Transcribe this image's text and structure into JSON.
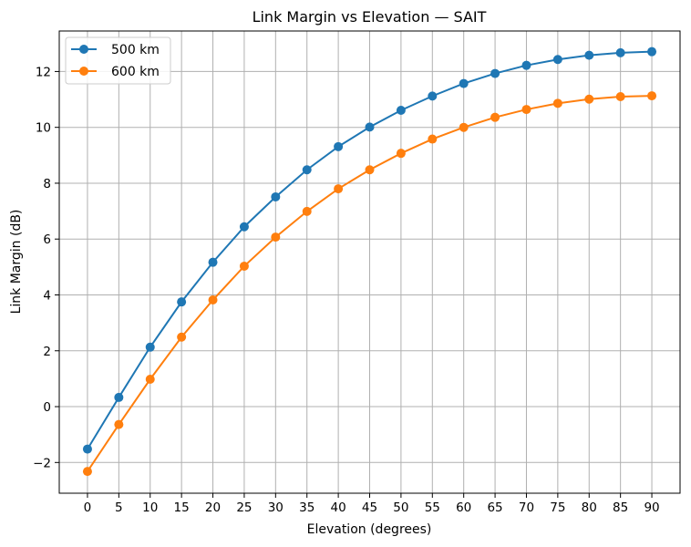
{
  "chart_data": {
    "type": "line",
    "title": "Link Margin vs Elevation — SAIT",
    "xlabel": "Elevation (degrees)",
    "ylabel": "Link Margin (dB)",
    "x": [
      0,
      5,
      10,
      15,
      20,
      25,
      30,
      35,
      40,
      45,
      50,
      55,
      60,
      65,
      70,
      75,
      80,
      85,
      90
    ],
    "xlim": [
      -4.5,
      94.5
    ],
    "ylim": [
      -3.1,
      13.45
    ],
    "xticks": [
      0,
      5,
      10,
      15,
      20,
      25,
      30,
      35,
      40,
      45,
      50,
      55,
      60,
      65,
      70,
      75,
      80,
      85,
      90
    ],
    "yticks": [
      -2,
      0,
      2,
      4,
      6,
      8,
      10,
      12
    ],
    "ytick_labels": [
      "−2",
      "0",
      "2",
      "4",
      "6",
      "8",
      "10",
      "12"
    ],
    "grid": true,
    "legend_position": "top-left",
    "series": [
      {
        "name": "500 km",
        "color": "#1f77b4",
        "values": [
          -1.52,
          0.33,
          2.13,
          3.75,
          5.17,
          6.44,
          7.51,
          8.48,
          9.31,
          10.01,
          10.61,
          11.12,
          11.57,
          11.93,
          12.22,
          12.43,
          12.58,
          12.67,
          12.71
        ]
      },
      {
        "name": "600 km",
        "color": "#ff7f0e",
        "values": [
          -2.32,
          -0.64,
          0.98,
          2.49,
          3.82,
          5.03,
          6.07,
          6.99,
          7.8,
          8.48,
          9.07,
          9.58,
          10.0,
          10.36,
          10.64,
          10.86,
          11.01,
          11.1,
          11.13
        ]
      }
    ]
  }
}
